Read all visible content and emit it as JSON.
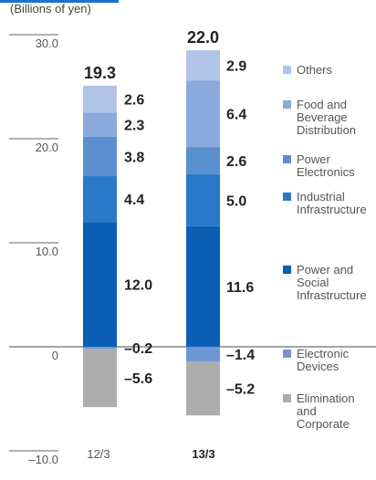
{
  "chart_data": {
    "type": "stacked bar",
    "unit_label": "(Billions of yen)",
    "categories": [
      "12/3",
      "13/3"
    ],
    "totals": [
      "19.3",
      "22.0"
    ],
    "ylim": [
      -10,
      30
    ],
    "y_ticks": [
      "30.0",
      "20.0",
      "10.0",
      "0",
      "–10.0"
    ],
    "series": [
      {
        "name": "Power and Social Infrastructure",
        "color": "#0a5fb4",
        "values": [
          12.0,
          11.6
        ],
        "labels": [
          "12.0",
          "11.6"
        ]
      },
      {
        "name": "Industrial Infrastructure",
        "color": "#2a78c8",
        "values": [
          4.4,
          5.0
        ],
        "labels": [
          "4.4",
          "5.0"
        ]
      },
      {
        "name": "Power Electronics",
        "color": "#5a8fcf",
        "values": [
          3.8,
          2.6
        ],
        "labels": [
          "3.8",
          "2.6"
        ]
      },
      {
        "name": "Food and Beverage Distribution",
        "color": "#8aa9dc",
        "values": [
          2.3,
          6.4
        ],
        "labels": [
          "2.3",
          "6.4"
        ]
      },
      {
        "name": "Others",
        "color": "#b1c4e8",
        "values": [
          2.6,
          2.9
        ],
        "labels": [
          "2.6",
          "2.9"
        ]
      },
      {
        "name": "Electronic Devices",
        "color": "#6f95d3",
        "values": [
          -0.2,
          -1.4
        ],
        "labels": [
          "–0.2",
          "–1.4"
        ]
      },
      {
        "name": "Elimination and Corporate",
        "color": "#adadad",
        "values": [
          -5.6,
          -5.2
        ],
        "labels": [
          "–5.6",
          "–5.2"
        ]
      }
    ],
    "legend": [
      {
        "lines": [
          "Others"
        ],
        "color": "#b1c4e8"
      },
      {
        "lines": [
          "Food and",
          "Beverage",
          "Distribution"
        ],
        "color": "#8aa9dc"
      },
      {
        "lines": [
          "Power",
          "Electronics"
        ],
        "color": "#5a8fcf"
      },
      {
        "lines": [
          "Industrial",
          "Infrastructure"
        ],
        "color": "#2a78c8"
      },
      {
        "lines": [
          "Power and",
          "Social",
          "Infrastructure"
        ],
        "color": "#0a5fb4"
      },
      {
        "lines": [
          "Electronic",
          "Devices"
        ],
        "color": "#6f95d3"
      },
      {
        "lines": [
          "Elimination",
          "and",
          "Corporate"
        ],
        "color": "#adadad"
      }
    ]
  }
}
